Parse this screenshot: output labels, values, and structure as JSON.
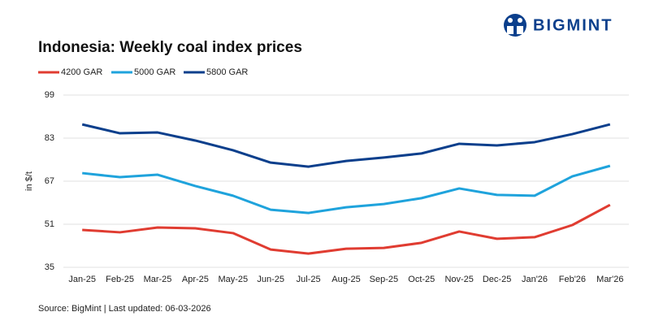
{
  "brand": "BIGMINT",
  "chart_data": {
    "type": "line",
    "title": "Indonesia: Weekly coal index prices",
    "ylabel": "in $/t",
    "source": "Source: BigMint | Last updated: 06-03-2026",
    "categories": [
      "Jan-25",
      "Feb-25",
      "Mar-25",
      "Apr-25",
      "May-25",
      "Jun-25",
      "Jul-25",
      "Aug-25",
      "Sep-25",
      "Oct-25",
      "Nov-25",
      "Dec-25",
      "Jan'26",
      "Feb'26",
      "Mar'26"
    ],
    "series": [
      {
        "name": "4200 GAR",
        "color": "#e03c31",
        "values": [
          48.9,
          48.0,
          49.8,
          49.5,
          47.7,
          41.6,
          40.1,
          41.9,
          42.2,
          44.1,
          48.3,
          45.6,
          46.2,
          50.7,
          58.2
        ]
      },
      {
        "name": "5000 GAR",
        "color": "#1fa3dc",
        "values": [
          70.0,
          68.5,
          69.4,
          65.2,
          61.6,
          56.4,
          55.2,
          57.3,
          58.5,
          60.7,
          64.3,
          61.9,
          61.6,
          68.8,
          72.7
        ]
      },
      {
        "name": "5800 GAR",
        "color": "#0b3f8c",
        "values": [
          88.1,
          84.8,
          85.1,
          82.1,
          78.5,
          73.9,
          72.4,
          74.5,
          75.8,
          77.3,
          80.9,
          80.3,
          81.5,
          84.5,
          88.1
        ]
      }
    ],
    "ylim": [
      35,
      99
    ],
    "yticks": [
      35,
      51,
      67,
      83,
      99
    ],
    "grid": true
  }
}
